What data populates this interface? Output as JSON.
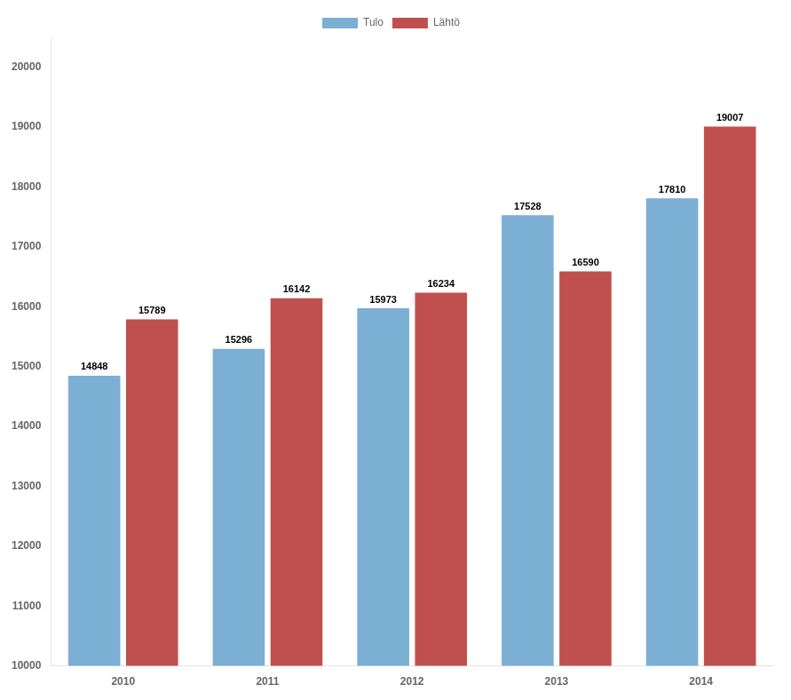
{
  "chart_data": {
    "type": "bar",
    "categories": [
      "2010",
      "2011",
      "2012",
      "2013",
      "2014"
    ],
    "series": [
      {
        "name": "Tulo",
        "color": "#7bafd4",
        "values": [
          14848,
          15296,
          15973,
          17528,
          17810
        ]
      },
      {
        "name": "Lähtö",
        "color": "#c0504d",
        "values": [
          15789,
          16142,
          16234,
          16590,
          19007
        ]
      }
    ],
    "ylim": [
      10000,
      20500
    ],
    "yticks": [
      10000,
      11000,
      12000,
      13000,
      14000,
      15000,
      16000,
      17000,
      18000,
      19000,
      20000
    ],
    "grid": false,
    "legend": "top",
    "data_labels": true
  }
}
